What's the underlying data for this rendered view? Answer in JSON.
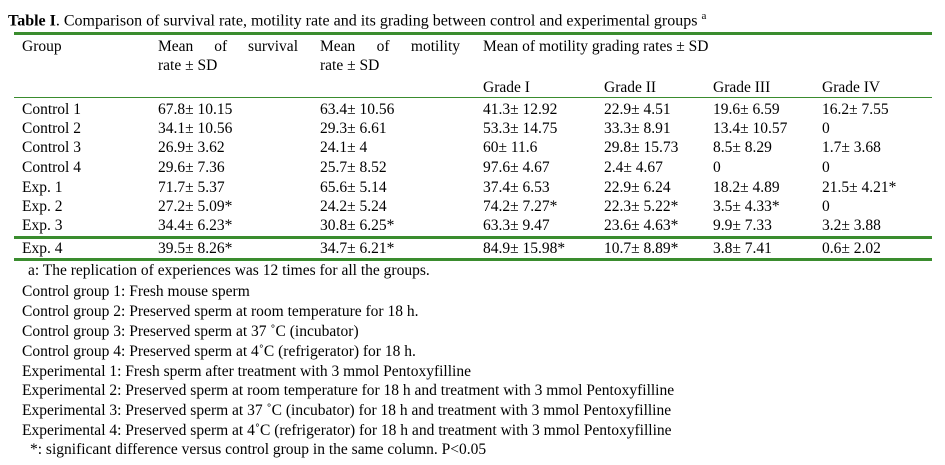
{
  "title": {
    "label": "Table I",
    "text": ". Comparison of survival rate, motility rate and its grading between control and experimental groups",
    "superscript": "a"
  },
  "header": {
    "group": "Group",
    "survival_line1": "Mean of survival",
    "survival_line2": "rate ± SD",
    "motility_line1": "Mean of motility",
    "motility_line2": "rate ± SD",
    "grading": "Mean of motility grading rates ± SD",
    "grade1": "Grade I",
    "grade2": "Grade II",
    "grade3": "Grade III",
    "grade4": "Grade IV"
  },
  "rows": [
    {
      "group": "Control 1",
      "survival": "67.8± 10.15",
      "motility": "63.4± 10.56",
      "g1": "41.3± 12.92",
      "g2": "22.9± 4.51",
      "g3": "19.6± 6.59",
      "g4": "16.2± 7.55"
    },
    {
      "group": "Control 2",
      "survival": "34.1± 10.56",
      "motility": "29.3± 6.61",
      "g1": "53.3± 14.75",
      "g2": "33.3± 8.91",
      "g3": "13.4± 10.57",
      "g4": "0"
    },
    {
      "group": "Control 3",
      "survival": "26.9± 3.62",
      "motility": "24.1± 4",
      "g1": "60± 11.6",
      "g2": "29.8± 15.73",
      "g3": "8.5± 8.29",
      "g4": "1.7± 3.68"
    },
    {
      "group": "Control 4",
      "survival": "29.6± 7.36",
      "motility": "25.7± 8.52",
      "g1": "97.6± 4.67",
      "g2": "2.4± 4.67",
      "g3": "0",
      "g4": "0"
    },
    {
      "group": "Exp. 1",
      "survival": "71.7± 5.37",
      "motility": "65.6± 5.14",
      "g1": "37.4± 6.53",
      "g2": "22.9± 6.24",
      "g3": "18.2± 4.89",
      "g4": "21.5± 4.21*"
    },
    {
      "group": "Exp. 2",
      "survival": "27.2± 5.09*",
      "motility": "24.2± 5.24",
      "g1": "74.2± 7.27*",
      "g2": "22.3± 5.22*",
      "g3": "3.5± 4.33*",
      "g4": "0"
    },
    {
      "group": "Exp. 3",
      "survival": "34.4± 6.23*",
      "motility": "30.8± 6.25*",
      "g1": "63.3± 9.47",
      "g2": "23.6± 4.63*",
      "g3": "9.9± 7.33",
      "g4": "3.2± 3.88"
    },
    {
      "group": "Exp. 4",
      "survival": "39.5± 8.26*",
      "motility": "34.7± 6.21*",
      "g1": "84.9± 15.98*",
      "g2": "10.7± 8.89*",
      "g3": "3.8± 7.41",
      "g4": "0.6± 2.02"
    }
  ],
  "notes": [
    "a: The replication of experiences was 12 times for all the groups.",
    "Control group 1: Fresh mouse sperm",
    "Control group 2: Preserved sperm at room temperature for 18 h.",
    "Control group 3: Preserved sperm at 37 ˚C (incubator)",
    "Control group 4: Preserved sperm at 4˚C (refrigerator) for 18 h.",
    "Experimental 1: Fresh sperm after treatment with 3 mmol Pentoxyfilline",
    "Experimental 2: Preserved sperm at room temperature for 18 h and treatment with 3 mmol Pentoxyfilline",
    "Experimental 3: Preserved sperm at 37 ˚C (incubator) for 18 h and treatment with 3 mmol Pentoxyfilline",
    "Experimental 4: Preserved sperm at 4˚C (refrigerator) for 18 h and treatment with 3 mmol Pentoxyfilline",
    "*: significant difference versus control group in the same column. P<0.05"
  ],
  "colors": {
    "rule": "#3a8c2e"
  }
}
